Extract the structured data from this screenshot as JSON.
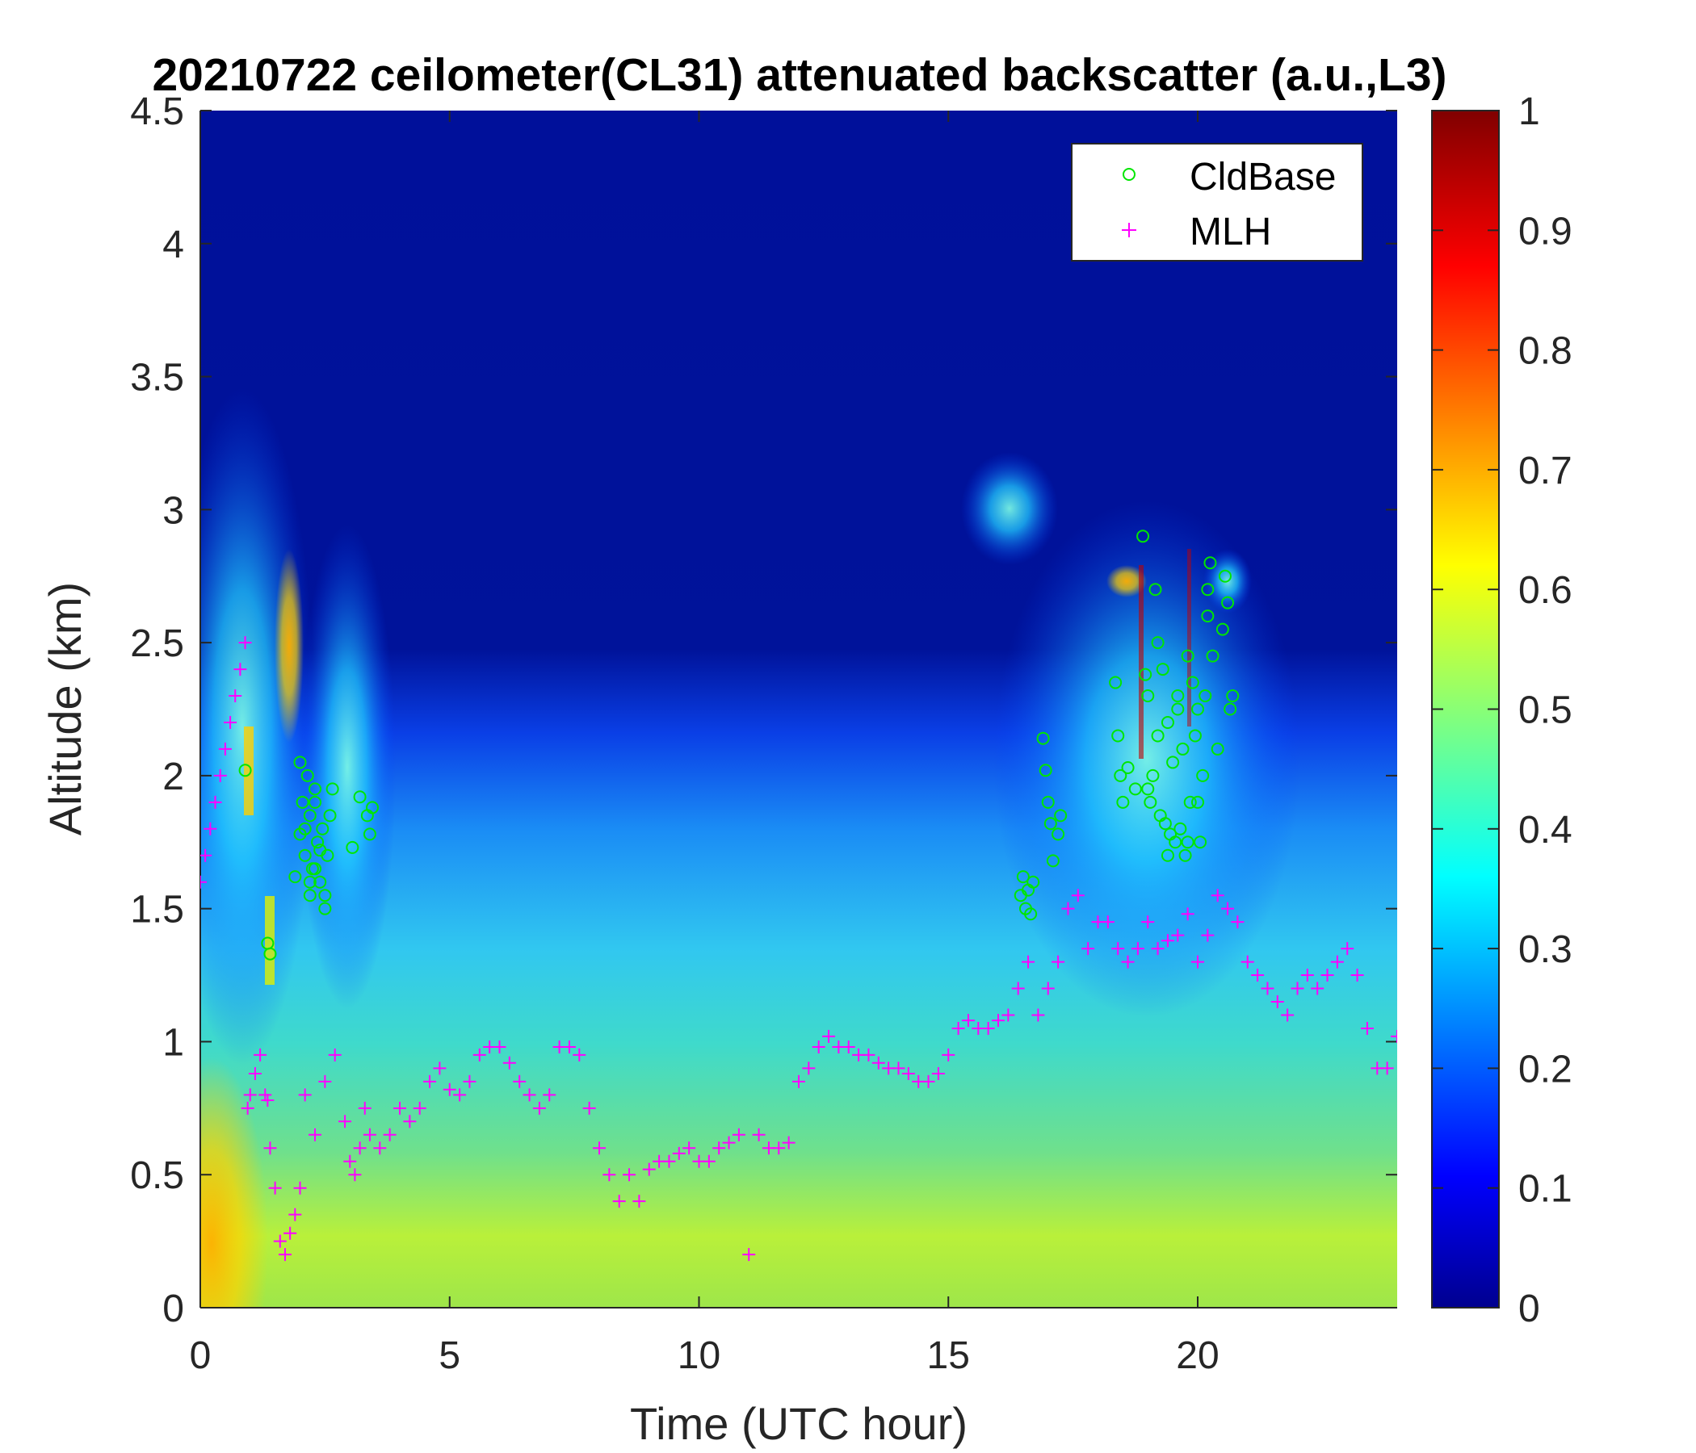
{
  "chart_data": {
    "type": "heatmap",
    "title": "20210722 ceilometer(CL31) attenuated backscatter (a.u.,L3)",
    "xlabel": "Time (UTC hour)",
    "ylabel": "Altitude (km)",
    "xlim": [
      0,
      24
    ],
    "ylim": [
      0,
      4.5
    ],
    "xticks": [
      0,
      5,
      10,
      15,
      20
    ],
    "xtick_labels": [
      "0",
      "5",
      "10",
      "15",
      "20"
    ],
    "yticks": [
      0,
      0.5,
      1,
      1.5,
      2,
      2.5,
      3,
      3.5,
      4,
      4.5
    ],
    "ytick_labels": [
      "0",
      "0.5",
      "1",
      "1.5",
      "2",
      "2.5",
      "3",
      "3.5",
      "4",
      "4.5"
    ],
    "colorbar": {
      "colormap": "jet",
      "range": [
        0,
        1
      ],
      "ticks": [
        0,
        0.1,
        0.2,
        0.3,
        0.4,
        0.5,
        0.6,
        0.7,
        0.8,
        0.9,
        1
      ],
      "tick_labels": [
        "0",
        "0.1",
        "0.2",
        "0.3",
        "0.4",
        "0.5",
        "0.6",
        "0.7",
        "0.8",
        "0.9",
        "1"
      ]
    },
    "legend": {
      "placement": "top-right",
      "entries": [
        {
          "label": "CldBase",
          "marker": "circle",
          "color": "#00e600"
        },
        {
          "label": "MLH",
          "marker": "plus",
          "color": "#ff00ff"
        }
      ]
    },
    "series": [
      {
        "name": "CldBase",
        "marker": "circle",
        "color": "#00e600",
        "x": [
          0.9,
          1.35,
          1.4,
          1.9,
          2.0,
          2.05,
          2.1,
          2.15,
          2.2,
          2.25,
          2.3,
          2.35,
          2.4,
          2.45,
          2.5,
          2.55,
          2.6,
          2.65,
          2.0,
          2.1,
          2.2,
          2.3,
          2.4,
          2.5,
          2.2,
          2.3,
          3.05,
          3.2,
          3.35,
          3.4,
          3.45,
          16.45,
          16.5,
          16.55,
          16.6,
          16.65,
          16.7,
          16.9,
          16.95,
          17.0,
          17.05,
          17.1,
          17.2,
          17.25,
          18.35,
          18.4,
          18.45,
          18.5,
          18.6,
          18.75,
          18.9,
          18.95,
          19.0,
          19.05,
          19.1,
          19.15,
          19.2,
          19.25,
          19.3,
          19.35,
          19.4,
          19.45,
          19.5,
          19.55,
          19.6,
          19.65,
          19.7,
          19.75,
          19.8,
          19.85,
          19.9,
          19.95,
          20.0,
          20.05,
          20.1,
          20.15,
          20.2,
          20.25,
          20.3,
          20.4,
          20.5,
          20.55,
          20.6,
          20.65,
          20.7,
          19.0,
          19.2,
          19.4,
          19.6,
          19.8,
          20.0,
          20.2
        ],
        "y": [
          2.02,
          1.37,
          1.33,
          1.62,
          1.78,
          1.9,
          1.7,
          2.0,
          1.85,
          1.65,
          1.95,
          1.75,
          1.6,
          1.8,
          1.55,
          1.7,
          1.85,
          1.95,
          2.05,
          1.8,
          1.6,
          1.9,
          1.72,
          1.5,
          1.55,
          1.65,
          1.73,
          1.92,
          1.85,
          1.78,
          1.88,
          1.55,
          1.62,
          1.5,
          1.57,
          1.48,
          1.6,
          2.14,
          2.02,
          1.9,
          1.82,
          1.68,
          1.78,
          1.85,
          2.35,
          2.15,
          2.0,
          1.9,
          2.03,
          1.95,
          2.9,
          2.38,
          2.3,
          1.9,
          2.0,
          2.7,
          2.5,
          1.85,
          2.4,
          1.82,
          2.2,
          1.78,
          2.05,
          1.75,
          2.3,
          1.8,
          2.1,
          1.7,
          2.45,
          1.9,
          2.35,
          2.15,
          2.25,
          1.75,
          2.0,
          2.3,
          2.6,
          2.8,
          2.45,
          2.1,
          2.55,
          2.75,
          2.65,
          2.25,
          2.3,
          1.95,
          2.15,
          1.7,
          2.25,
          1.75,
          1.9,
          2.7
        ]
      },
      {
        "name": "MLH",
        "marker": "plus",
        "color": "#ff00ff",
        "x": [
          0.0,
          0.1,
          0.2,
          0.3,
          0.4,
          0.5,
          0.6,
          0.7,
          0.8,
          0.9,
          0.95,
          1.0,
          1.1,
          1.2,
          1.3,
          1.35,
          1.4,
          1.5,
          1.6,
          1.7,
          1.8,
          1.9,
          2.0,
          2.1,
          2.3,
          2.5,
          2.7,
          2.9,
          3.0,
          3.1,
          3.2,
          3.3,
          3.4,
          3.6,
          3.8,
          4.0,
          4.2,
          4.4,
          4.6,
          4.8,
          5.0,
          5.2,
          5.4,
          5.6,
          5.8,
          6.0,
          6.2,
          6.4,
          6.6,
          6.8,
          7.0,
          7.2,
          7.4,
          7.6,
          7.8,
          8.0,
          8.2,
          8.4,
          8.6,
          8.8,
          9.0,
          9.2,
          9.4,
          9.6,
          9.8,
          10.0,
          10.2,
          10.4,
          10.6,
          10.8,
          11.0,
          11.2,
          11.4,
          11.6,
          11.8,
          12.0,
          12.2,
          12.4,
          12.6,
          12.8,
          13.0,
          13.2,
          13.4,
          13.6,
          13.8,
          14.0,
          14.2,
          14.4,
          14.6,
          14.8,
          15.0,
          15.2,
          15.4,
          15.6,
          15.8,
          16.0,
          16.2,
          16.4,
          16.6,
          16.8,
          17.0,
          17.2,
          17.4,
          17.6,
          17.8,
          18.0,
          18.2,
          18.4,
          18.6,
          18.8,
          19.0,
          19.2,
          19.4,
          19.6,
          19.8,
          20.0,
          20.2,
          20.4,
          20.6,
          20.8,
          21.0,
          21.2,
          21.4,
          21.6,
          21.8,
          22.0,
          22.2,
          22.4,
          22.6,
          22.8,
          23.0,
          23.2,
          23.4,
          23.6,
          23.8,
          24.0
        ],
        "y": [
          1.6,
          1.7,
          1.8,
          1.9,
          2.0,
          2.1,
          2.2,
          2.3,
          2.4,
          2.5,
          0.75,
          0.8,
          0.88,
          0.95,
          0.8,
          0.78,
          0.6,
          0.45,
          0.25,
          0.2,
          0.28,
          0.35,
          0.45,
          0.8,
          0.65,
          0.85,
          0.95,
          0.7,
          0.55,
          0.5,
          0.6,
          0.75,
          0.65,
          0.6,
          0.65,
          0.75,
          0.7,
          0.75,
          0.85,
          0.9,
          0.82,
          0.8,
          0.85,
          0.95,
          0.98,
          0.98,
          0.92,
          0.85,
          0.8,
          0.75,
          0.8,
          0.98,
          0.98,
          0.95,
          0.75,
          0.6,
          0.5,
          0.4,
          0.5,
          0.4,
          0.52,
          0.55,
          0.55,
          0.58,
          0.6,
          0.55,
          0.55,
          0.6,
          0.62,
          0.65,
          0.2,
          0.65,
          0.6,
          0.6,
          0.62,
          0.85,
          0.9,
          0.98,
          1.02,
          0.98,
          0.98,
          0.95,
          0.95,
          0.92,
          0.9,
          0.9,
          0.88,
          0.85,
          0.85,
          0.88,
          0.95,
          1.05,
          1.08,
          1.05,
          1.05,
          1.08,
          1.1,
          1.2,
          1.3,
          1.1,
          1.2,
          1.3,
          1.5,
          1.55,
          1.35,
          1.45,
          1.45,
          1.35,
          1.3,
          1.35,
          1.45,
          1.35,
          1.38,
          1.4,
          1.48,
          1.3,
          1.4,
          1.55,
          1.5,
          1.45,
          1.3,
          1.25,
          1.2,
          1.15,
          1.1,
          1.2,
          1.25,
          1.2,
          1.25,
          1.3,
          1.35,
          1.25,
          1.05,
          0.9,
          0.9,
          1.02
        ]
      }
    ]
  }
}
